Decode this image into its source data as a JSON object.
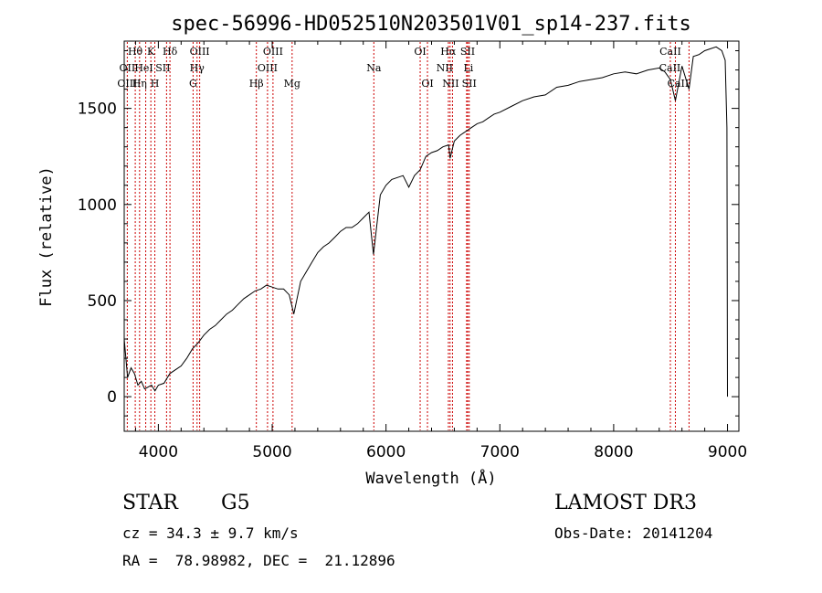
{
  "chart_data": {
    "type": "line",
    "title": "spec-56996-HD052510N203501V01_sp14-237.fits",
    "xlabel": "Wavelength (Å)",
    "ylabel": "Flux (relative)",
    "xlim": [
      3700,
      9100
    ],
    "ylim": [
      -180,
      1850
    ],
    "xticks": [
      4000,
      5000,
      6000,
      7000,
      8000,
      9000
    ],
    "yticks": [
      0,
      500,
      1000,
      1500
    ],
    "series": [
      {
        "name": "spectrum",
        "x": [
          3700,
          3730,
          3760,
          3790,
          3820,
          3850,
          3880,
          3910,
          3940,
          3970,
          4000,
          4050,
          4100,
          4150,
          4200,
          4250,
          4300,
          4350,
          4400,
          4450,
          4500,
          4550,
          4600,
          4650,
          4700,
          4750,
          4800,
          4850,
          4900,
          4950,
          5000,
          5050,
          5100,
          5150,
          5190,
          5250,
          5300,
          5350,
          5400,
          5450,
          5500,
          5550,
          5600,
          5650,
          5700,
          5750,
          5800,
          5850,
          5890,
          5950,
          6000,
          6050,
          6100,
          6150,
          6200,
          6250,
          6300,
          6350,
          6400,
          6450,
          6500,
          6550,
          6563,
          6600,
          6650,
          6700,
          6750,
          6800,
          6850,
          6900,
          6950,
          7000,
          7100,
          7200,
          7300,
          7400,
          7500,
          7600,
          7700,
          7800,
          7900,
          8000,
          8100,
          8200,
          8300,
          8400,
          8450,
          8498,
          8542,
          8600,
          8662,
          8700,
          8750,
          8800,
          8850,
          8900,
          8950,
          8980,
          8995,
          9000
        ],
        "y": [
          300,
          100,
          150,
          120,
          60,
          80,
          40,
          50,
          60,
          30,
          60,
          70,
          120,
          140,
          160,
          200,
          250,
          280,
          320,
          350,
          370,
          400,
          430,
          450,
          480,
          510,
          530,
          550,
          560,
          580,
          570,
          560,
          560,
          530,
          430,
          600,
          650,
          700,
          750,
          780,
          800,
          830,
          860,
          880,
          880,
          900,
          930,
          960,
          740,
          1050,
          1100,
          1130,
          1140,
          1150,
          1090,
          1150,
          1180,
          1250,
          1270,
          1280,
          1300,
          1310,
          1240,
          1330,
          1360,
          1380,
          1400,
          1420,
          1430,
          1450,
          1470,
          1480,
          1510,
          1540,
          1560,
          1570,
          1610,
          1620,
          1640,
          1650,
          1660,
          1680,
          1690,
          1680,
          1700,
          1710,
          1690,
          1650,
          1540,
          1720,
          1600,
          1770,
          1780,
          1800,
          1810,
          1820,
          1800,
          1750,
          1400,
          0
        ]
      }
    ],
    "lines": [
      {
        "name": "Hθ",
        "wl": 3797,
        "row": 0,
        "dx": 0
      },
      {
        "name": "K",
        "wl": 3934,
        "row": 0,
        "dx": 0
      },
      {
        "name": "Hδ",
        "wl": 4102,
        "row": 0,
        "dx": 0
      },
      {
        "name": "OIII",
        "wl": 4363,
        "row": 0,
        "dx": 0
      },
      {
        "name": "OIII",
        "wl": 5007,
        "row": 0,
        "dx": 0
      },
      {
        "name": "OI",
        "wl": 6300,
        "row": 0,
        "dx": 0
      },
      {
        "name": "Hα",
        "wl": 6563,
        "row": 0,
        "dx": -2
      },
      {
        "name": "SII",
        "wl": 6717,
        "row": 0,
        "dx": 0
      },
      {
        "name": "CaII",
        "wl": 8498,
        "row": 0,
        "dx": 0
      },
      {
        "name": "OII",
        "wl": 3727,
        "row": 1,
        "dx": 0
      },
      {
        "name": "HeI",
        "wl": 3889,
        "row": 1,
        "dx": -2
      },
      {
        "name": "SII",
        "wl": 4072,
        "row": 1,
        "dx": -4
      },
      {
        "name": "Hγ",
        "wl": 4340,
        "row": 1,
        "dx": 0
      },
      {
        "name": "OIII",
        "wl": 4959,
        "row": 1,
        "dx": 0
      },
      {
        "name": "Na",
        "wl": 5893,
        "row": 1,
        "dx": 0
      },
      {
        "name": "NII",
        "wl": 6548,
        "row": 1,
        "dx": -4
      },
      {
        "name": "Li",
        "wl": 6708,
        "row": 1,
        "dx": 2
      },
      {
        "name": "CaII",
        "wl": 8542,
        "row": 1,
        "dx": -6
      },
      {
        "name": "OIII",
        "wl": 3727,
        "row": 2,
        "dx": 0
      },
      {
        "name": "Hη",
        "wl": 3835,
        "row": 2,
        "dx": 0
      },
      {
        "name": "H",
        "wl": 3969,
        "row": 2,
        "dx": 0
      },
      {
        "name": "G",
        "wl": 4305,
        "row": 2,
        "dx": 0
      },
      {
        "name": "Hβ",
        "wl": 4861,
        "row": 2,
        "dx": 0
      },
      {
        "name": "Mg",
        "wl": 5175,
        "row": 2,
        "dx": 0
      },
      {
        "name": "OI",
        "wl": 6364,
        "row": 2,
        "dx": 0
      },
      {
        "name": "NII",
        "wl": 6584,
        "row": 2,
        "dx": -2
      },
      {
        "name": "SII",
        "wl": 6731,
        "row": 2,
        "dx": 0
      },
      {
        "name": "CaII",
        "wl": 8662,
        "row": 2,
        "dx": -12
      }
    ]
  },
  "info": {
    "class": "STAR",
    "subclass": "G5",
    "survey": "LAMOST DR3",
    "cz": "cz = 34.3 ± 9.7 km/s",
    "obs_date": "Obs-Date: 20141204",
    "coords": "RA =  78.98982, DEC =  21.12896"
  },
  "colors": {
    "line_marker": "#cc0000",
    "spectrum": "#000000",
    "axis": "#000000"
  }
}
